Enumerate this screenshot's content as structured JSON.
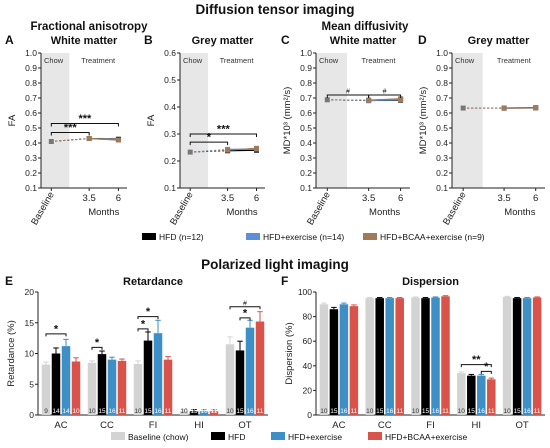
{
  "figure": {
    "dti_title": "Diffusion tensor imaging",
    "pli_title": "Polarized light imaging",
    "fa_header": "Fractional anisotropy",
    "md_header": "Mean diffusivity",
    "chow_label": "Chow",
    "treatment_label": "Treatment",
    "months_label": "Months"
  },
  "colors": {
    "HFD": "#000000",
    "HFD+exercise": "#5b8fd6",
    "HFD+BCAA+exercise": "#a07a5a",
    "Baseline_line": "#777777",
    "pli_baseline": "#d3d3d3",
    "pli_hfd": "#000000",
    "pli_exercise": "#3d8fc6",
    "pli_bcaa": "#d9534a",
    "chow_shade": "#e7e7e7"
  },
  "legend_top": [
    {
      "label": "HFD (n=12)",
      "color": "#000000"
    },
    {
      "label": "HFD+exercise (n=14)",
      "color": "#5b8fd6"
    },
    {
      "label": "HFD+BCAA+exercise (n=9)",
      "color": "#a07a5a"
    }
  ],
  "legend_bottom": [
    {
      "label": "Baseline (chow)",
      "color": "#d3d3d3"
    },
    {
      "label": "HFD",
      "color": "#000000"
    },
    {
      "label": "HFD+exercise",
      "color": "#3d8fc6"
    },
    {
      "label": "HFD+BCAA+exercise",
      "color": "#d9534a"
    }
  ],
  "chart_data": [
    {
      "panel": "A",
      "type": "line",
      "title": "White matter",
      "ylabel": "FA",
      "xlabel": "Months",
      "x": [
        "Baseline",
        "3.5",
        "6"
      ],
      "ylim": [
        0.1,
        1.0
      ],
      "yticks": [
        0.1,
        0.2,
        0.3,
        0.4,
        0.5,
        0.6,
        0.7,
        0.8,
        0.9,
        1.0
      ],
      "baseline": 0.41,
      "series": [
        {
          "name": "HFD",
          "values": [
            0.41,
            0.43,
            0.425
          ]
        },
        {
          "name": "HFD+exercise",
          "values": [
            0.41,
            0.43,
            0.42
          ]
        },
        {
          "name": "HFD+BCAA+exercise",
          "values": [
            0.41,
            0.43,
            0.42
          ]
        }
      ],
      "annotations": [
        {
          "from": 0,
          "to": 1,
          "y": 0.47,
          "label": "***"
        },
        {
          "from": 0,
          "to": 2,
          "y": 0.53,
          "label": "***"
        }
      ]
    },
    {
      "panel": "B",
      "type": "line",
      "title": "Grey matter",
      "ylabel": "FA",
      "xlabel": "Months",
      "x": [
        "Baseline",
        "3.5",
        "6"
      ],
      "ylim": [
        0.1,
        0.6
      ],
      "yticks": [
        0.1,
        0.2,
        0.3,
        0.4,
        0.5,
        0.6
      ],
      "baseline": 0.233,
      "series": [
        {
          "name": "HFD",
          "values": [
            0.233,
            0.238,
            0.24
          ]
        },
        {
          "name": "HFD+exercise",
          "values": [
            0.233,
            0.243,
            0.244
          ]
        },
        {
          "name": "HFD+BCAA+exercise",
          "values": [
            0.233,
            0.24,
            0.247
          ]
        }
      ],
      "annotations": [
        {
          "from": 0,
          "to": 1,
          "y": 0.27,
          "label": "*"
        },
        {
          "from": 0,
          "to": 2,
          "y": 0.3,
          "label": "***"
        }
      ]
    },
    {
      "panel": "C",
      "type": "line",
      "title": "White matter",
      "ylabel": "MD*10³ (mm²/s)",
      "xlabel": "Months",
      "x": [
        "Baseline",
        "3.5",
        "6"
      ],
      "ylim": [
        0.1,
        1.0
      ],
      "yticks": [
        0.1,
        0.2,
        0.3,
        0.4,
        0.5,
        0.6,
        0.7,
        0.8,
        0.9,
        1.0
      ],
      "baseline": 0.688,
      "series": [
        {
          "name": "HFD",
          "values": [
            0.688,
            0.683,
            0.686
          ]
        },
        {
          "name": "HFD+exercise",
          "values": [
            0.688,
            0.682,
            0.69
          ]
        },
        {
          "name": "HFD+BCAA+exercise",
          "values": [
            0.688,
            0.686,
            0.695
          ]
        }
      ],
      "annotations": [
        {
          "from": 0,
          "to": 1,
          "y": 0.72,
          "label": "#"
        },
        {
          "from": 1,
          "to": 2,
          "y": 0.72,
          "label": "#"
        }
      ]
    },
    {
      "panel": "D",
      "type": "line",
      "title": "Grey matter",
      "ylabel": "MD*10³ (mm²/s)",
      "xlabel": "Months",
      "x": [
        "Baseline",
        "3.5",
        "6"
      ],
      "ylim": [
        0.1,
        1.0
      ],
      "yticks": [
        0.1,
        0.2,
        0.3,
        0.4,
        0.5,
        0.6,
        0.7,
        0.8,
        0.9,
        1.0
      ],
      "baseline": 0.633,
      "series": [
        {
          "name": "HFD",
          "values": [
            0.633,
            0.633,
            0.635
          ]
        },
        {
          "name": "HFD+exercise",
          "values": [
            0.633,
            0.632,
            0.633
          ]
        },
        {
          "name": "HFD+BCAA+exercise",
          "values": [
            0.633,
            0.632,
            0.634
          ]
        }
      ],
      "annotations": []
    },
    {
      "panel": "E",
      "type": "bar",
      "title": "Retardance",
      "ylabel": "Retardance (%)",
      "categories": [
        "AC",
        "CC",
        "FI",
        "HI",
        "OT"
      ],
      "ylim": [
        0,
        20
      ],
      "yticks": [
        0,
        5,
        10,
        15,
        20
      ],
      "series": [
        {
          "name": "Baseline (chow)",
          "values": [
            8.2,
            8.5,
            8.3,
            0.6,
            11.5
          ],
          "errors": [
            0.4,
            0.3,
            0.5,
            0.3,
            1.2
          ],
          "n": [
            9,
            10,
            10,
            10,
            10
          ]
        },
        {
          "name": "HFD",
          "values": [
            10.0,
            9.9,
            12.1,
            0.6,
            10.5
          ],
          "errors": [
            0.9,
            0.5,
            1.4,
            0.3,
            1.5
          ],
          "n": [
            14,
            15,
            15,
            15,
            15
          ]
        },
        {
          "name": "HFD+exercise",
          "values": [
            11.2,
            9.0,
            13.3,
            0.6,
            14.2
          ],
          "errors": [
            1.1,
            0.4,
            2.1,
            0.3,
            1.2
          ],
          "n": [
            14,
            16,
            16,
            16,
            16
          ]
        },
        {
          "name": "HFD+BCAA+exercise",
          "values": [
            8.7,
            8.8,
            9.0,
            0.6,
            15.2
          ],
          "errors": [
            0.6,
            0.3,
            0.5,
            0.3,
            1.6
          ],
          "n": [
            10,
            11,
            11,
            11,
            11
          ]
        }
      ],
      "annotations": [
        {
          "cat": 0,
          "from": 0,
          "to": 2,
          "y": 13.2,
          "label": "*"
        },
        {
          "cat": 1,
          "from": 0,
          "to": 1,
          "y": 11.0,
          "label": "*"
        },
        {
          "cat": 2,
          "from": 0,
          "to": 2,
          "y": 16.0,
          "label": "*"
        },
        {
          "cat": 2,
          "from": 0,
          "to": 1,
          "y": 14.0,
          "label": "*"
        },
        {
          "cat": 4,
          "from": 0,
          "to": 3,
          "y": 17.6,
          "label": "#"
        },
        {
          "cat": 4,
          "from": 1,
          "to": 2,
          "y": 15.8,
          "label": "*"
        }
      ]
    },
    {
      "panel": "F",
      "type": "bar",
      "title": "Dispersion",
      "ylabel": "Dispersion (%)",
      "categories": [
        "AC",
        "CC",
        "FI",
        "HI",
        "OT"
      ],
      "ylim": [
        0,
        100
      ],
      "yticks": [
        0,
        20,
        40,
        60,
        80,
        100
      ],
      "series": [
        {
          "name": "Baseline (chow)",
          "values": [
            90,
            95,
            95.5,
            34,
            96
          ],
          "errors": [
            1,
            0.5,
            0.5,
            1,
            0.5
          ],
          "n": [
            10,
            10,
            10,
            10,
            10
          ]
        },
        {
          "name": "HFD",
          "values": [
            86,
            95,
            95,
            32,
            95
          ],
          "errors": [
            1.5,
            0.5,
            0.5,
            1,
            0.5
          ],
          "n": [
            15,
            15,
            15,
            15,
            15
          ]
        },
        {
          "name": "HFD+exercise",
          "values": [
            90,
            95,
            95.5,
            32,
            95
          ],
          "errors": [
            1,
            0.5,
            0.5,
            1,
            0.5
          ],
          "n": [
            16,
            16,
            16,
            16,
            16
          ]
        },
        {
          "name": "HFD+BCAA+exercise",
          "values": [
            88.5,
            95,
            96.5,
            29,
            95.5
          ],
          "errors": [
            1,
            0.5,
            0.5,
            1,
            0.5
          ],
          "n": [
            11,
            11,
            11,
            11,
            11
          ]
        }
      ],
      "annotations": [
        {
          "cat": 3,
          "from": 0,
          "to": 3,
          "y": 41,
          "label": "**"
        },
        {
          "cat": 3,
          "from": 2,
          "to": 3,
          "y": 35.5,
          "label": "*"
        }
      ]
    }
  ]
}
